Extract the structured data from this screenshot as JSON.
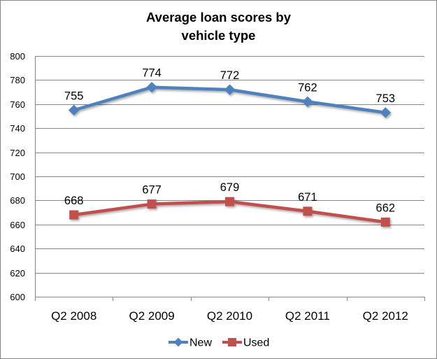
{
  "chart_data": {
    "type": "line",
    "title_lines": [
      "Average loan scores by",
      "vehicle type"
    ],
    "categories": [
      "Q2 2008",
      "Q2 2009",
      "Q2 2010",
      "Q2 2011",
      "Q2 2012"
    ],
    "series": [
      {
        "name": "New",
        "values": [
          755,
          774,
          772,
          762,
          753
        ],
        "color": "#4f81bd",
        "marker": "diamond"
      },
      {
        "name": "Used",
        "values": [
          668,
          677,
          679,
          671,
          662
        ],
        "color": "#c0504d",
        "marker": "square"
      }
    ],
    "ylim": [
      600,
      800
    ],
    "yticks": [
      600,
      620,
      640,
      660,
      680,
      700,
      720,
      740,
      760,
      780,
      800
    ],
    "grid": true,
    "data_labels": true,
    "legend_position": "bottom"
  }
}
